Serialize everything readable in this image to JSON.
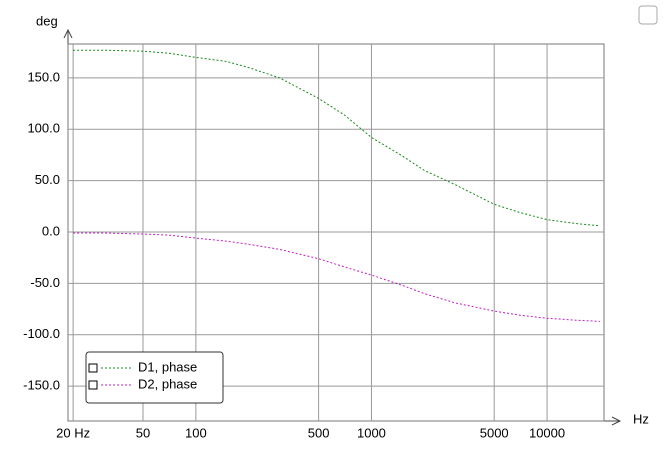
{
  "chart_data": {
    "type": "line",
    "y_label": "deg",
    "x_label": "Hz",
    "log_x": true,
    "grid": true,
    "legend": "lower-left",
    "x": [
      20,
      30,
      50,
      70,
      100,
      150,
      200,
      300,
      500,
      700,
      1000,
      1500,
      2000,
      3000,
      5000,
      7000,
      10000,
      15000,
      20000
    ],
    "series": [
      {
        "name": "D1, phase",
        "color": "#1a8a1a",
        "values": [
          177,
          177,
          176,
          174,
          170,
          166,
          160,
          150,
          130,
          114,
          92,
          74,
          60,
          46,
          27,
          19,
          12,
          8,
          6
        ]
      },
      {
        "name": "D2, phase",
        "color": "#c020c0",
        "values": [
          -1,
          -1,
          -2,
          -3,
          -6,
          -9,
          -12,
          -17,
          -26,
          -34,
          -42,
          -52,
          -60,
          -69,
          -77,
          -81,
          -84,
          -86,
          -87
        ]
      }
    ],
    "xlim": [
      18.7,
      21100
    ],
    "xticks": [
      {
        "value": 20,
        "label": "20 Hz"
      },
      50,
      100,
      500,
      1000,
      5000,
      10000
    ],
    "ylim": [
      -184,
      183
    ],
    "yticks": [
      {
        "value": 150,
        "label": "150.0"
      },
      {
        "value": 100,
        "label": "100.0"
      },
      {
        "value": 50,
        "label": "50.0"
      },
      {
        "value": 0,
        "label": "0.0"
      },
      {
        "value": -50,
        "label": "-50.0"
      },
      {
        "value": -100,
        "label": "-100.0"
      },
      {
        "value": -150,
        "label": "-150.0"
      }
    ]
  }
}
